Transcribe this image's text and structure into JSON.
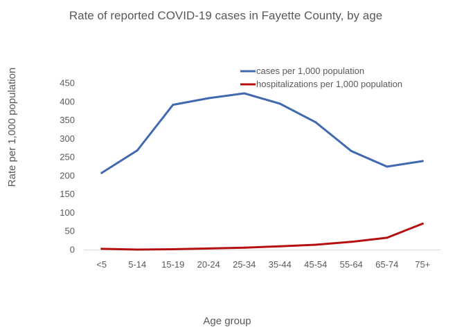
{
  "chart_data": {
    "type": "line",
    "title": "Rate of reported COVID-19 cases in Fayette County, by age",
    "xlabel": "Age group",
    "ylabel": "Rate per 1,000 population",
    "categories": [
      "<5",
      "5-14",
      "15-19",
      "20-24",
      "25-34",
      "35-44",
      "45-54",
      "55-64",
      "65-74",
      "75+"
    ],
    "ylim": [
      0,
      450
    ],
    "yticks": [
      0,
      50,
      100,
      150,
      200,
      250,
      300,
      350,
      400,
      450
    ],
    "grid": false,
    "legend_position": "top-right",
    "series": [
      {
        "name": "cases per 1,000 population",
        "color": "#4169b0",
        "values": [
          207,
          268,
          391,
          409,
          422,
          394,
          344,
          266,
          224,
          239
        ]
      },
      {
        "name": "hospitalizations per 1,000 population",
        "color": "#b50f0f",
        "values": [
          2,
          0,
          1,
          3,
          5,
          9,
          13,
          21,
          32,
          70
        ]
      }
    ]
  }
}
